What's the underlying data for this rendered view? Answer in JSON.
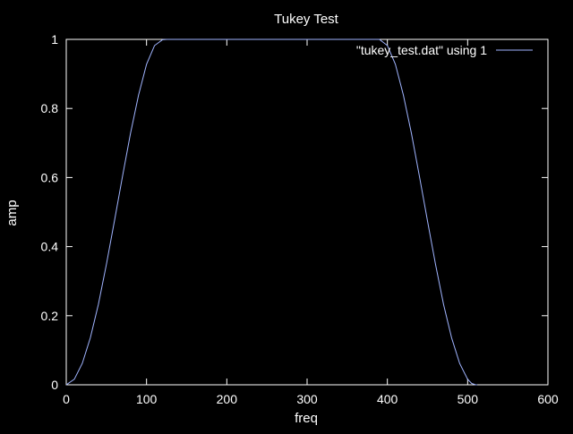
{
  "chart_data": {
    "type": "line",
    "title": "Tukey Test",
    "xlabel": "freq",
    "ylabel": "amp",
    "xlim": [
      0,
      600
    ],
    "ylim": [
      0,
      1
    ],
    "xticks": [
      0,
      100,
      200,
      300,
      400,
      500,
      600
    ],
    "yticks": [
      0,
      0.2,
      0.4,
      0.6,
      0.8,
      1
    ],
    "ytick_labels": [
      "0",
      "0.2",
      "0.4",
      "0.6",
      "0.8",
      "1"
    ],
    "grid": false,
    "legend_position": "top-right",
    "colors": {
      "background": "#000000",
      "axes": "#ffffff",
      "text": "#ffffff",
      "series": "#a0b4ff"
    },
    "series": [
      {
        "name": "\"tukey_test.dat\" using 1",
        "x": [
          0,
          10,
          20,
          30,
          40,
          50,
          60,
          70,
          80,
          90,
          100,
          110,
          120,
          125,
          130,
          140,
          150,
          160,
          170,
          180,
          190,
          200,
          210,
          220,
          230,
          240,
          250,
          260,
          270,
          280,
          290,
          300,
          310,
          320,
          330,
          340,
          350,
          360,
          370,
          380,
          390,
          400,
          410,
          420,
          430,
          440,
          450,
          460,
          470,
          480,
          490,
          500,
          505,
          510,
          512
        ],
        "values": [
          0,
          0.016,
          0.062,
          0.136,
          0.233,
          0.348,
          0.474,
          0.603,
          0.727,
          0.838,
          0.928,
          0.982,
          0.999,
          1,
          1,
          1,
          1,
          1,
          1,
          1,
          1,
          1,
          1,
          1,
          1,
          1,
          1,
          1,
          1,
          1,
          1,
          1,
          1,
          1,
          1,
          1,
          1,
          1,
          1,
          1,
          1,
          0.982,
          0.928,
          0.838,
          0.727,
          0.603,
          0.474,
          0.348,
          0.233,
          0.136,
          0.062,
          0.016,
          0.004,
          0,
          0
        ]
      }
    ]
  }
}
